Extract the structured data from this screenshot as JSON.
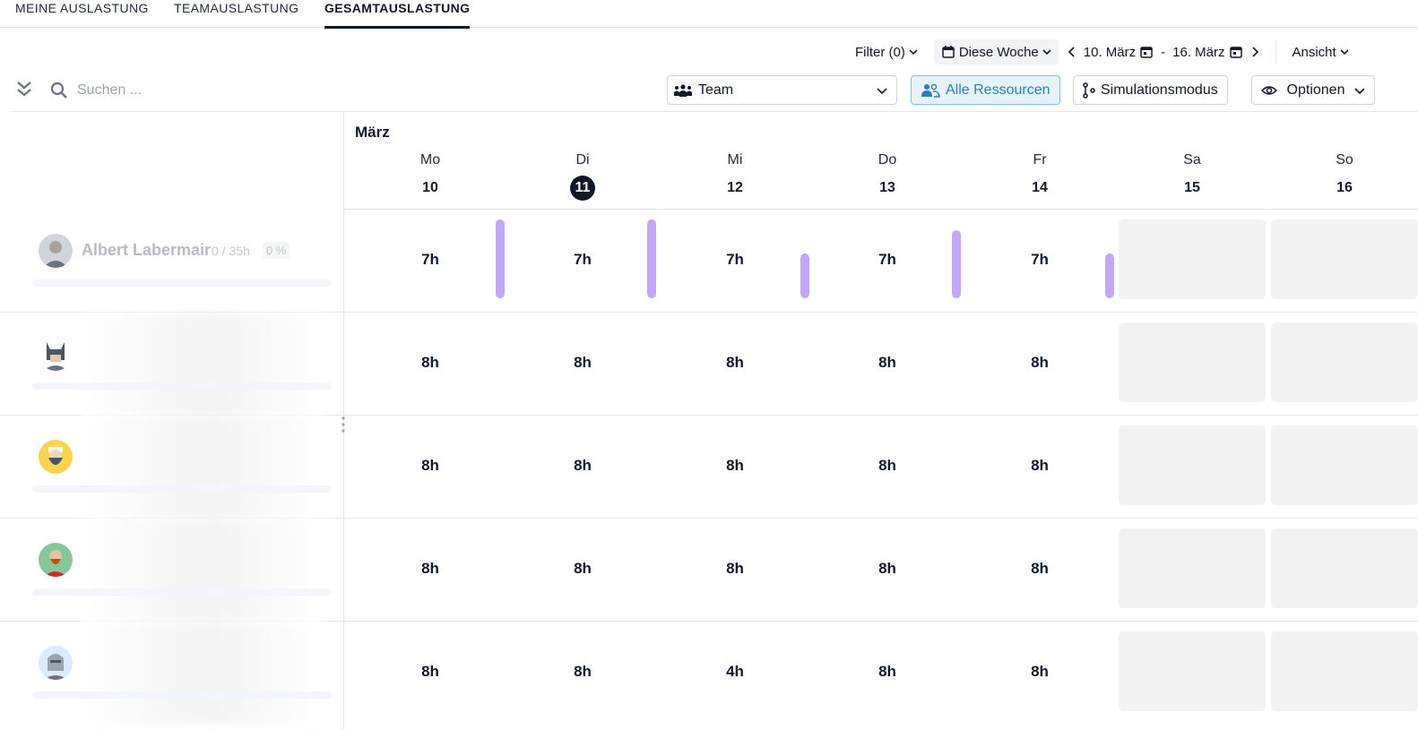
{
  "tabs": [
    {
      "label": "MEINE AUSLASTUNG",
      "active": false
    },
    {
      "label": "TEAMAUSLASTUNG",
      "active": false
    },
    {
      "label": "GESAMTAUSLASTUNG",
      "active": true
    }
  ],
  "toolbar": {
    "filter_label": "Filter (0)",
    "range_label": "Diese Woche",
    "date_from": "10. März",
    "date_separator": "-",
    "date_to": "16. März",
    "view_label": "Ansicht"
  },
  "search": {
    "placeholder": "Suchen ..."
  },
  "controls": {
    "team_select": "Team",
    "all_resources": "Alle Ressourcen",
    "simulation": "Simulationsmodus",
    "options": "Optionen"
  },
  "calendar": {
    "month": "März",
    "today_index": 1,
    "days": [
      {
        "name": "Mo",
        "num": "10"
      },
      {
        "name": "Di",
        "num": "11"
      },
      {
        "name": "Mi",
        "num": "12"
      },
      {
        "name": "Do",
        "num": "13"
      },
      {
        "name": "Fr",
        "num": "14"
      },
      {
        "name": "Sa",
        "num": "15"
      },
      {
        "name": "So",
        "num": "16"
      }
    ]
  },
  "resources": [
    {
      "name": "Albert Labermair",
      "hours": "0 / 35h",
      "pct": "0 %",
      "avatar": "person-photo-avatar",
      "days": [
        "7h",
        "7h",
        "7h",
        "7h",
        "7h"
      ],
      "load": [
        1.0,
        1.0,
        0.57,
        0.86,
        0.57
      ]
    },
    {
      "name": "",
      "avatar": "batman-avatar",
      "days": [
        "8h",
        "8h",
        "8h",
        "8h",
        "8h"
      ]
    },
    {
      "name": "",
      "avatar": "bearded-hipster-avatar",
      "days": [
        "8h",
        "8h",
        "8h",
        "8h",
        "8h"
      ]
    },
    {
      "name": "",
      "avatar": "bearded-man-green-avatar",
      "days": [
        "8h",
        "8h",
        "8h",
        "8h",
        "8h"
      ]
    },
    {
      "name": "",
      "avatar": "knight-helmet-avatar",
      "days": [
        "8h",
        "8h",
        "4h",
        "8h",
        "8h"
      ]
    }
  ],
  "colors": {
    "accent": "#111827",
    "load_bar": "#c4a7fb",
    "weekend": "#f2f2f2",
    "active_button": "#2a7fc0"
  }
}
